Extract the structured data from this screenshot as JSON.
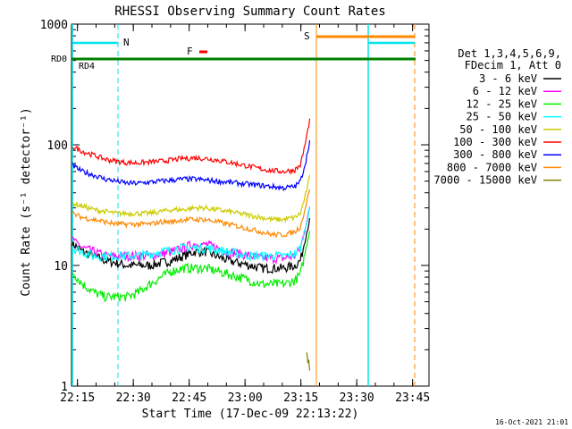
{
  "chart_data": {
    "type": "line",
    "title": "RHESSI Observing Summary Count Rates",
    "xlabel": "Start Time (17-Dec-09 22:13:22)",
    "ylabel": "Count Rate (s⁻¹ detector⁻¹)",
    "y_log": true,
    "ylim": [
      1,
      1000
    ],
    "xlim_minutes": [
      0,
      96
    ],
    "x_ticks": [
      {
        "label": "22:15",
        "min": 1.6
      },
      {
        "label": "22:30",
        "min": 16.6
      },
      {
        "label": "22:45",
        "min": 31.6
      },
      {
        "label": "23:00",
        "min": 46.6
      },
      {
        "label": "23:15",
        "min": 61.6
      },
      {
        "label": "23:30",
        "min": 76.6
      },
      {
        "label": "23:45",
        "min": 91.6
      }
    ],
    "y_ticks": [
      {
        "label": "1",
        "v": 1
      },
      {
        "label": "10",
        "v": 10
      },
      {
        "label": "100",
        "v": 100
      },
      {
        "label": "1000",
        "v": 1000
      }
    ],
    "legend_header": [
      "Det 1,3,4,5,6,9,",
      "FDecim 1, Att 0"
    ],
    "legend_position": "right",
    "x_minutes": [
      0,
      3,
      6,
      9,
      12,
      15,
      18,
      21,
      24,
      27,
      30,
      33,
      36,
      39,
      42,
      45,
      48,
      51,
      54,
      57,
      60,
      61.5,
      63,
      64
    ],
    "series": [
      {
        "name": "3 - 6 keV",
        "color": "#000000",
        "values": [
          15.5,
          13,
          12,
          11,
          10.5,
          10,
          10,
          10,
          10.5,
          11,
          12,
          13,
          13,
          12,
          11,
          10.5,
          10,
          9.5,
          9.5,
          9.5,
          10,
          11,
          18,
          24
        ]
      },
      {
        "name": "6 - 12 keV",
        "color": "#ff00ff",
        "values": [
          17,
          14,
          13,
          12,
          12,
          12,
          12,
          12,
          12.5,
          13,
          14,
          15,
          15,
          14,
          13,
          12.5,
          12,
          11.5,
          11.5,
          11.5,
          12,
          14,
          22,
          30
        ]
      },
      {
        "name": "12 - 25 keV",
        "color": "#00ee00",
        "values": [
          9,
          7,
          6,
          5.5,
          5.5,
          5.5,
          6,
          7,
          8,
          9,
          9.5,
          9.5,
          9.5,
          9,
          8.5,
          8,
          7.5,
          7,
          7,
          7,
          7.5,
          8.5,
          14,
          20
        ]
      },
      {
        "name": "25 - 50 keV",
        "color": "#00ffff",
        "values": [
          14,
          13,
          12,
          12,
          12,
          12,
          12,
          12.5,
          13,
          13.5,
          14,
          14,
          14,
          13.5,
          13,
          12.5,
          12,
          12,
          12,
          12,
          12.5,
          14,
          22,
          30
        ]
      },
      {
        "name": "50 - 100 keV",
        "color": "#cccc00",
        "values": [
          33,
          31,
          29,
          28,
          27,
          27,
          27,
          27,
          28,
          29,
          29,
          30,
          30,
          29,
          28,
          27,
          26,
          25,
          24,
          24,
          25,
          27,
          40,
          55
        ]
      },
      {
        "name": "100 - 300 keV",
        "color": "#ff0000",
        "values": [
          98,
          88,
          82,
          76,
          73,
          71,
          71,
          72,
          73,
          75,
          77,
          78,
          77,
          75,
          72,
          69,
          66,
          63,
          61,
          60,
          62,
          68,
          110,
          165
        ]
      },
      {
        "name": "300 - 800 keV",
        "color": "#0000ff",
        "values": [
          68,
          60,
          56,
          52,
          50,
          48,
          48,
          49,
          50,
          51,
          52,
          52,
          51,
          50,
          49,
          48,
          47,
          46,
          45,
          44,
          45,
          50,
          75,
          110
        ]
      },
      {
        "name": "800 - 7000 keV",
        "color": "#ff8800",
        "values": [
          27,
          25,
          24,
          23,
          22,
          22,
          22,
          22,
          23,
          23,
          24,
          24,
          24,
          23,
          22,
          21,
          20,
          19,
          18,
          18,
          19,
          21,
          32,
          45
        ]
      },
      {
        "name": "7000 - 15000 keV",
        "color": "#808000",
        "values": [
          null,
          null,
          null,
          null,
          null,
          null,
          null,
          null,
          null,
          null,
          null,
          null,
          null,
          null,
          null,
          null,
          null,
          null,
          null,
          null,
          null,
          null,
          1.9,
          1.4
        ]
      }
    ],
    "annotations": {
      "n_label": "N",
      "s_label": "S",
      "f_label": "F",
      "rd0_label": "RD0",
      "rd4_label": "RD4"
    },
    "timestamp": "16-Oct-2021 21:01"
  }
}
